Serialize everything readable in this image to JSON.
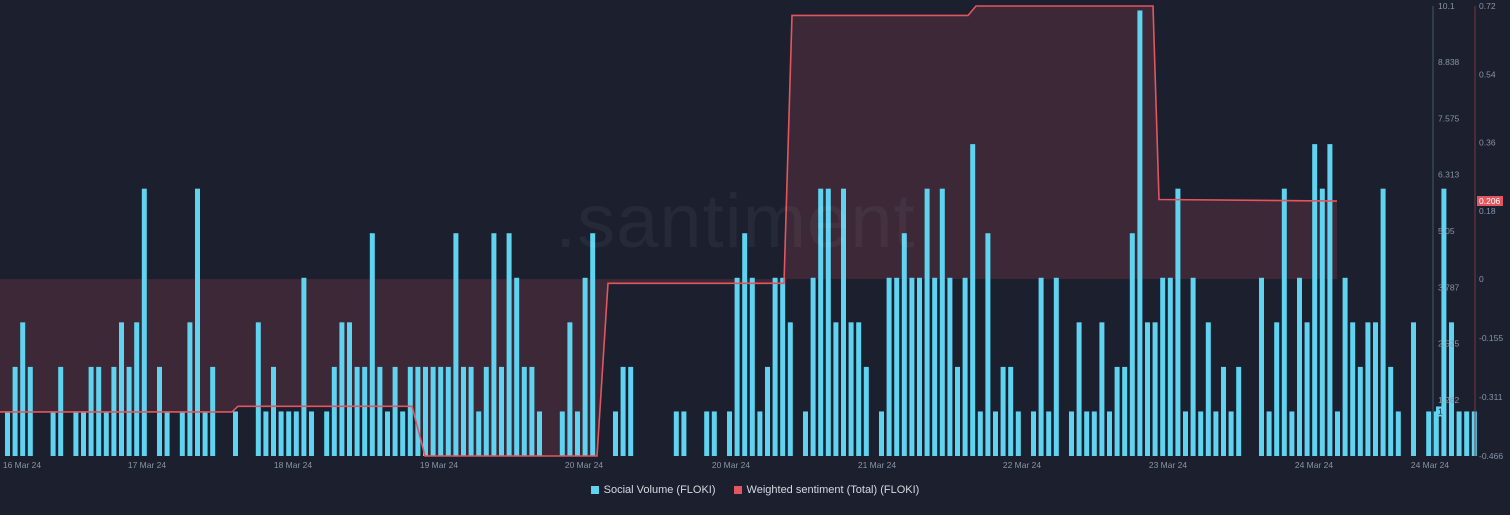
{
  "chart_data": {
    "type": "bar",
    "watermark": ".santiment",
    "x_tick_labels": [
      "16 Mar 24",
      "17 Mar 24",
      "18 Mar 24",
      "19 Mar 24",
      "20 Mar 24",
      "20 Mar 24",
      "21 Mar 24",
      "22 Mar 24",
      "23 Mar 24",
      "24 Mar 24",
      "24 Mar 24"
    ],
    "left_axis": {
      "ticks": [
        "10.1",
        "8.838",
        "7.575",
        "6.313",
        "5.05",
        "3.787",
        "2.525",
        "1.262"
      ],
      "ylim": [
        0,
        10.1
      ],
      "current_value_label": "1"
    },
    "right_axis": {
      "ticks": [
        "0.72",
        "0.54",
        "0.36",
        "0.18",
        "0",
        "-0.155",
        "-0.311",
        "-0.466"
      ],
      "ylim": [
        -0.466,
        0.72
      ],
      "current_value_label": "0.206"
    },
    "series": [
      {
        "name": "Social Volume (FLOKI)",
        "color": "#5fd3ef",
        "values": [
          1,
          2,
          3,
          2,
          0,
          0,
          1,
          2,
          0,
          1,
          1,
          2,
          2,
          1,
          2,
          3,
          2,
          3,
          6,
          0,
          2,
          1,
          0,
          1,
          3,
          6,
          1,
          2,
          0,
          0,
          1,
          0,
          0,
          3,
          1,
          2,
          1,
          1,
          1,
          4,
          1,
          0,
          1,
          2,
          3,
          3,
          2,
          2,
          5,
          2,
          1,
          2,
          1,
          2,
          2,
          2,
          2,
          2,
          2,
          5,
          2,
          2,
          1,
          2,
          5,
          2,
          5,
          4,
          2,
          2,
          1,
          0,
          0,
          1,
          3,
          1,
          4,
          5,
          0,
          0,
          1,
          2,
          2,
          0,
          0,
          0,
          0,
          0,
          1,
          1,
          0,
          0,
          1,
          1,
          0,
          1,
          4,
          5,
          4,
          1,
          2,
          4,
          4,
          3,
          0,
          1,
          4,
          6,
          6,
          3,
          6,
          3,
          3,
          2,
          0,
          1,
          4,
          4,
          5,
          4,
          4,
          6,
          4,
          6,
          4,
          2,
          4,
          7,
          1,
          5,
          1,
          2,
          2,
          1,
          0,
          1,
          4,
          1,
          4,
          0,
          1,
          3,
          1,
          1,
          3,
          1,
          2,
          2,
          5,
          10,
          3,
          3,
          4,
          4,
          6,
          1,
          4,
          1,
          3,
          1,
          2,
          1,
          2,
          0,
          0,
          4,
          1,
          3,
          6,
          1,
          4,
          3,
          7,
          6,
          7,
          1,
          4,
          3,
          2,
          3,
          3,
          6,
          2,
          1,
          0,
          3,
          0,
          1,
          1,
          6,
          3,
          1,
          1,
          1
        ]
      },
      {
        "name": "Weighted sentiment (Total) (FLOKI)",
        "color": "#e2575f",
        "line": [
          [
            0,
            -0.35
          ],
          [
            232,
            -0.35
          ],
          [
            238,
            -0.335
          ],
          [
            412,
            -0.335
          ],
          [
            425,
            -0.466
          ],
          [
            597,
            -0.466
          ],
          [
            608,
            -0.011
          ],
          [
            784,
            -0.011
          ],
          [
            792,
            0.695
          ],
          [
            968,
            0.695
          ],
          [
            976,
            0.72
          ],
          [
            1153,
            0.72
          ],
          [
            1159,
            0.21
          ],
          [
            1337,
            0.206
          ]
        ]
      }
    ]
  }
}
